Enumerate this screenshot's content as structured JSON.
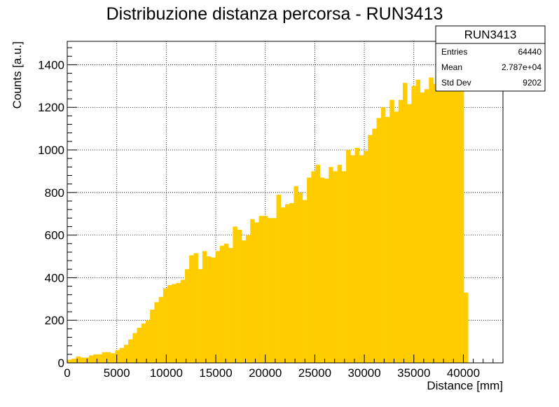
{
  "chart_data": {
    "type": "bar",
    "title": "Distribuzione distanza percorsa - RUN3413",
    "xlabel": "Distance [mm]",
    "ylabel": "Counts [a.u.]",
    "xlim": [
      0,
      44000
    ],
    "ylim": [
      0,
      1510
    ],
    "bin_width": 440,
    "x_ticks": [
      {
        "value": 0,
        "label": "0"
      },
      {
        "value": 5000,
        "label": "5000"
      },
      {
        "value": 10000,
        "label": "10000"
      },
      {
        "value": 15000,
        "label": "15000"
      },
      {
        "value": 20000,
        "label": "20000"
      },
      {
        "value": 25000,
        "label": "25000"
      },
      {
        "value": 30000,
        "label": "30000"
      },
      {
        "value": 35000,
        "label": "35000"
      },
      {
        "value": 40000,
        "label": "40000"
      }
    ],
    "y_ticks": [
      {
        "value": 0,
        "label": "0"
      },
      {
        "value": 200,
        "label": "200"
      },
      {
        "value": 400,
        "label": "400"
      },
      {
        "value": 600,
        "label": "600"
      },
      {
        "value": 800,
        "label": "800"
      },
      {
        "value": 1000,
        "label": "1000"
      },
      {
        "value": 1200,
        "label": "1200"
      },
      {
        "value": 1400,
        "label": "1400"
      }
    ],
    "grid": true,
    "bar_color": "#ffcc00",
    "values": [
      15,
      20,
      30,
      25,
      25,
      35,
      40,
      40,
      50,
      50,
      45,
      60,
      70,
      85,
      110,
      140,
      165,
      185,
      200,
      250,
      285,
      310,
      350,
      365,
      370,
      375,
      390,
      440,
      505,
      515,
      440,
      525,
      500,
      495,
      525,
      550,
      560,
      540,
      640,
      625,
      575,
      600,
      675,
      660,
      690,
      690,
      680,
      680,
      790,
      730,
      745,
      750,
      830,
      800,
      765,
      870,
      900,
      930,
      870,
      865,
      920,
      900,
      930,
      900,
      1000,
      975,
      1010,
      975,
      995,
      1070,
      1100,
      1150,
      1200,
      1155,
      1235,
      1180,
      1235,
      1315,
      1215,
      1300,
      1330,
      1270,
      1285,
      1340,
      1310,
      1380,
      1440,
      1320,
      1430,
      1290,
      1330,
      330
    ],
    "legend_placement": "top-right"
  },
  "stats_box": {
    "title": "RUN3413",
    "rows": [
      {
        "label": "Entries",
        "value": "64440"
      },
      {
        "label": "Mean",
        "value": "2.787e+04"
      },
      {
        "label": "Std Dev",
        "value": "9202"
      }
    ]
  }
}
